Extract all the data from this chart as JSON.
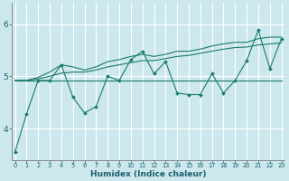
{
  "xlabel": "Humidex (Indice chaleur)",
  "background_color": "#cce8ee",
  "line_color": "#1a7a6e",
  "grid_color": "#b0d8df",
  "x_ticks": [
    0,
    1,
    2,
    3,
    4,
    5,
    6,
    7,
    8,
    9,
    10,
    11,
    12,
    13,
    14,
    15,
    16,
    17,
    18,
    19,
    20,
    21,
    22,
    23
  ],
  "y_ticks": [
    4,
    5,
    6
  ],
  "ylim": [
    3.4,
    6.4
  ],
  "xlim": [
    -0.3,
    23.3
  ],
  "series": {
    "jagged": [
      3.55,
      4.28,
      4.92,
      4.92,
      5.22,
      4.6,
      4.3,
      4.42,
      5.0,
      4.92,
      5.32,
      5.48,
      5.05,
      5.28,
      4.68,
      4.65,
      4.65,
      5.05,
      4.68,
      4.92,
      5.3,
      5.88,
      5.15,
      5.72
    ],
    "smooth_upper": [
      4.92,
      4.92,
      4.98,
      5.08,
      5.22,
      5.18,
      5.12,
      5.18,
      5.28,
      5.32,
      5.38,
      5.42,
      5.38,
      5.42,
      5.48,
      5.48,
      5.52,
      5.58,
      5.62,
      5.65,
      5.65,
      5.72,
      5.75,
      5.75
    ],
    "smooth_mid": [
      4.92,
      4.92,
      4.95,
      5.0,
      5.06,
      5.08,
      5.08,
      5.12,
      5.18,
      5.22,
      5.26,
      5.3,
      5.3,
      5.34,
      5.38,
      5.4,
      5.44,
      5.48,
      5.52,
      5.55,
      5.56,
      5.6,
      5.62,
      5.64
    ],
    "flat": [
      4.92,
      4.92,
      4.92,
      4.92,
      4.92,
      4.92,
      4.92,
      4.92,
      4.92,
      4.92,
      4.92,
      4.92,
      4.92,
      4.92,
      4.92,
      4.92,
      4.92,
      4.92,
      4.92,
      4.92,
      4.92,
      4.92,
      4.92,
      4.92
    ]
  }
}
